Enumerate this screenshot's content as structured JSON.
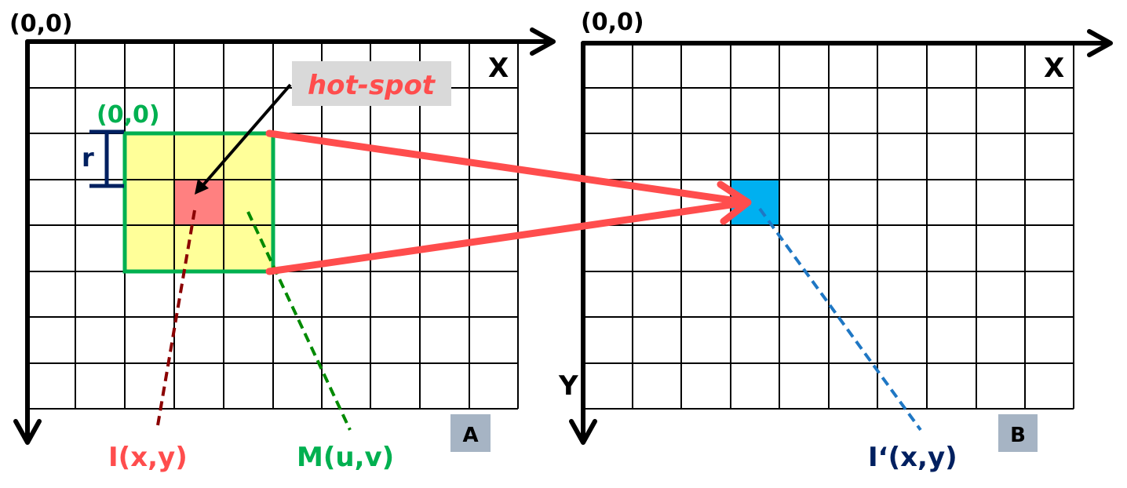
{
  "panelA": {
    "origin_label": "(0,0)",
    "x_label": "X",
    "mask_origin_label": "(0,0)",
    "radius_label": "r",
    "hotspot_label": "hot-spot",
    "input_label": "I(x,y)",
    "mask_label": "M(u,v)",
    "panel_tag": "A"
  },
  "panelB": {
    "origin_label": "(0,0)",
    "x_label": "X",
    "y_label": "Y",
    "output_label": "I‘(x,y)",
    "panel_tag": "B"
  },
  "colors": {
    "grid": "#000000",
    "mask_fill": "#ffff99",
    "mask_border": "#00b050",
    "hotspot_fill": "#ff8080",
    "output_pixel": "#00b0f0",
    "arrow_red": "#ff4d4d",
    "hotspot_text": "#ff4d4d",
    "hotspot_box": "#d9d9d9",
    "radius_bracket": "#002060",
    "input_line": "#8b0000",
    "mask_line": "#008a00",
    "output_line": "#1f77c4",
    "tag_box": "#a6b4c4"
  }
}
